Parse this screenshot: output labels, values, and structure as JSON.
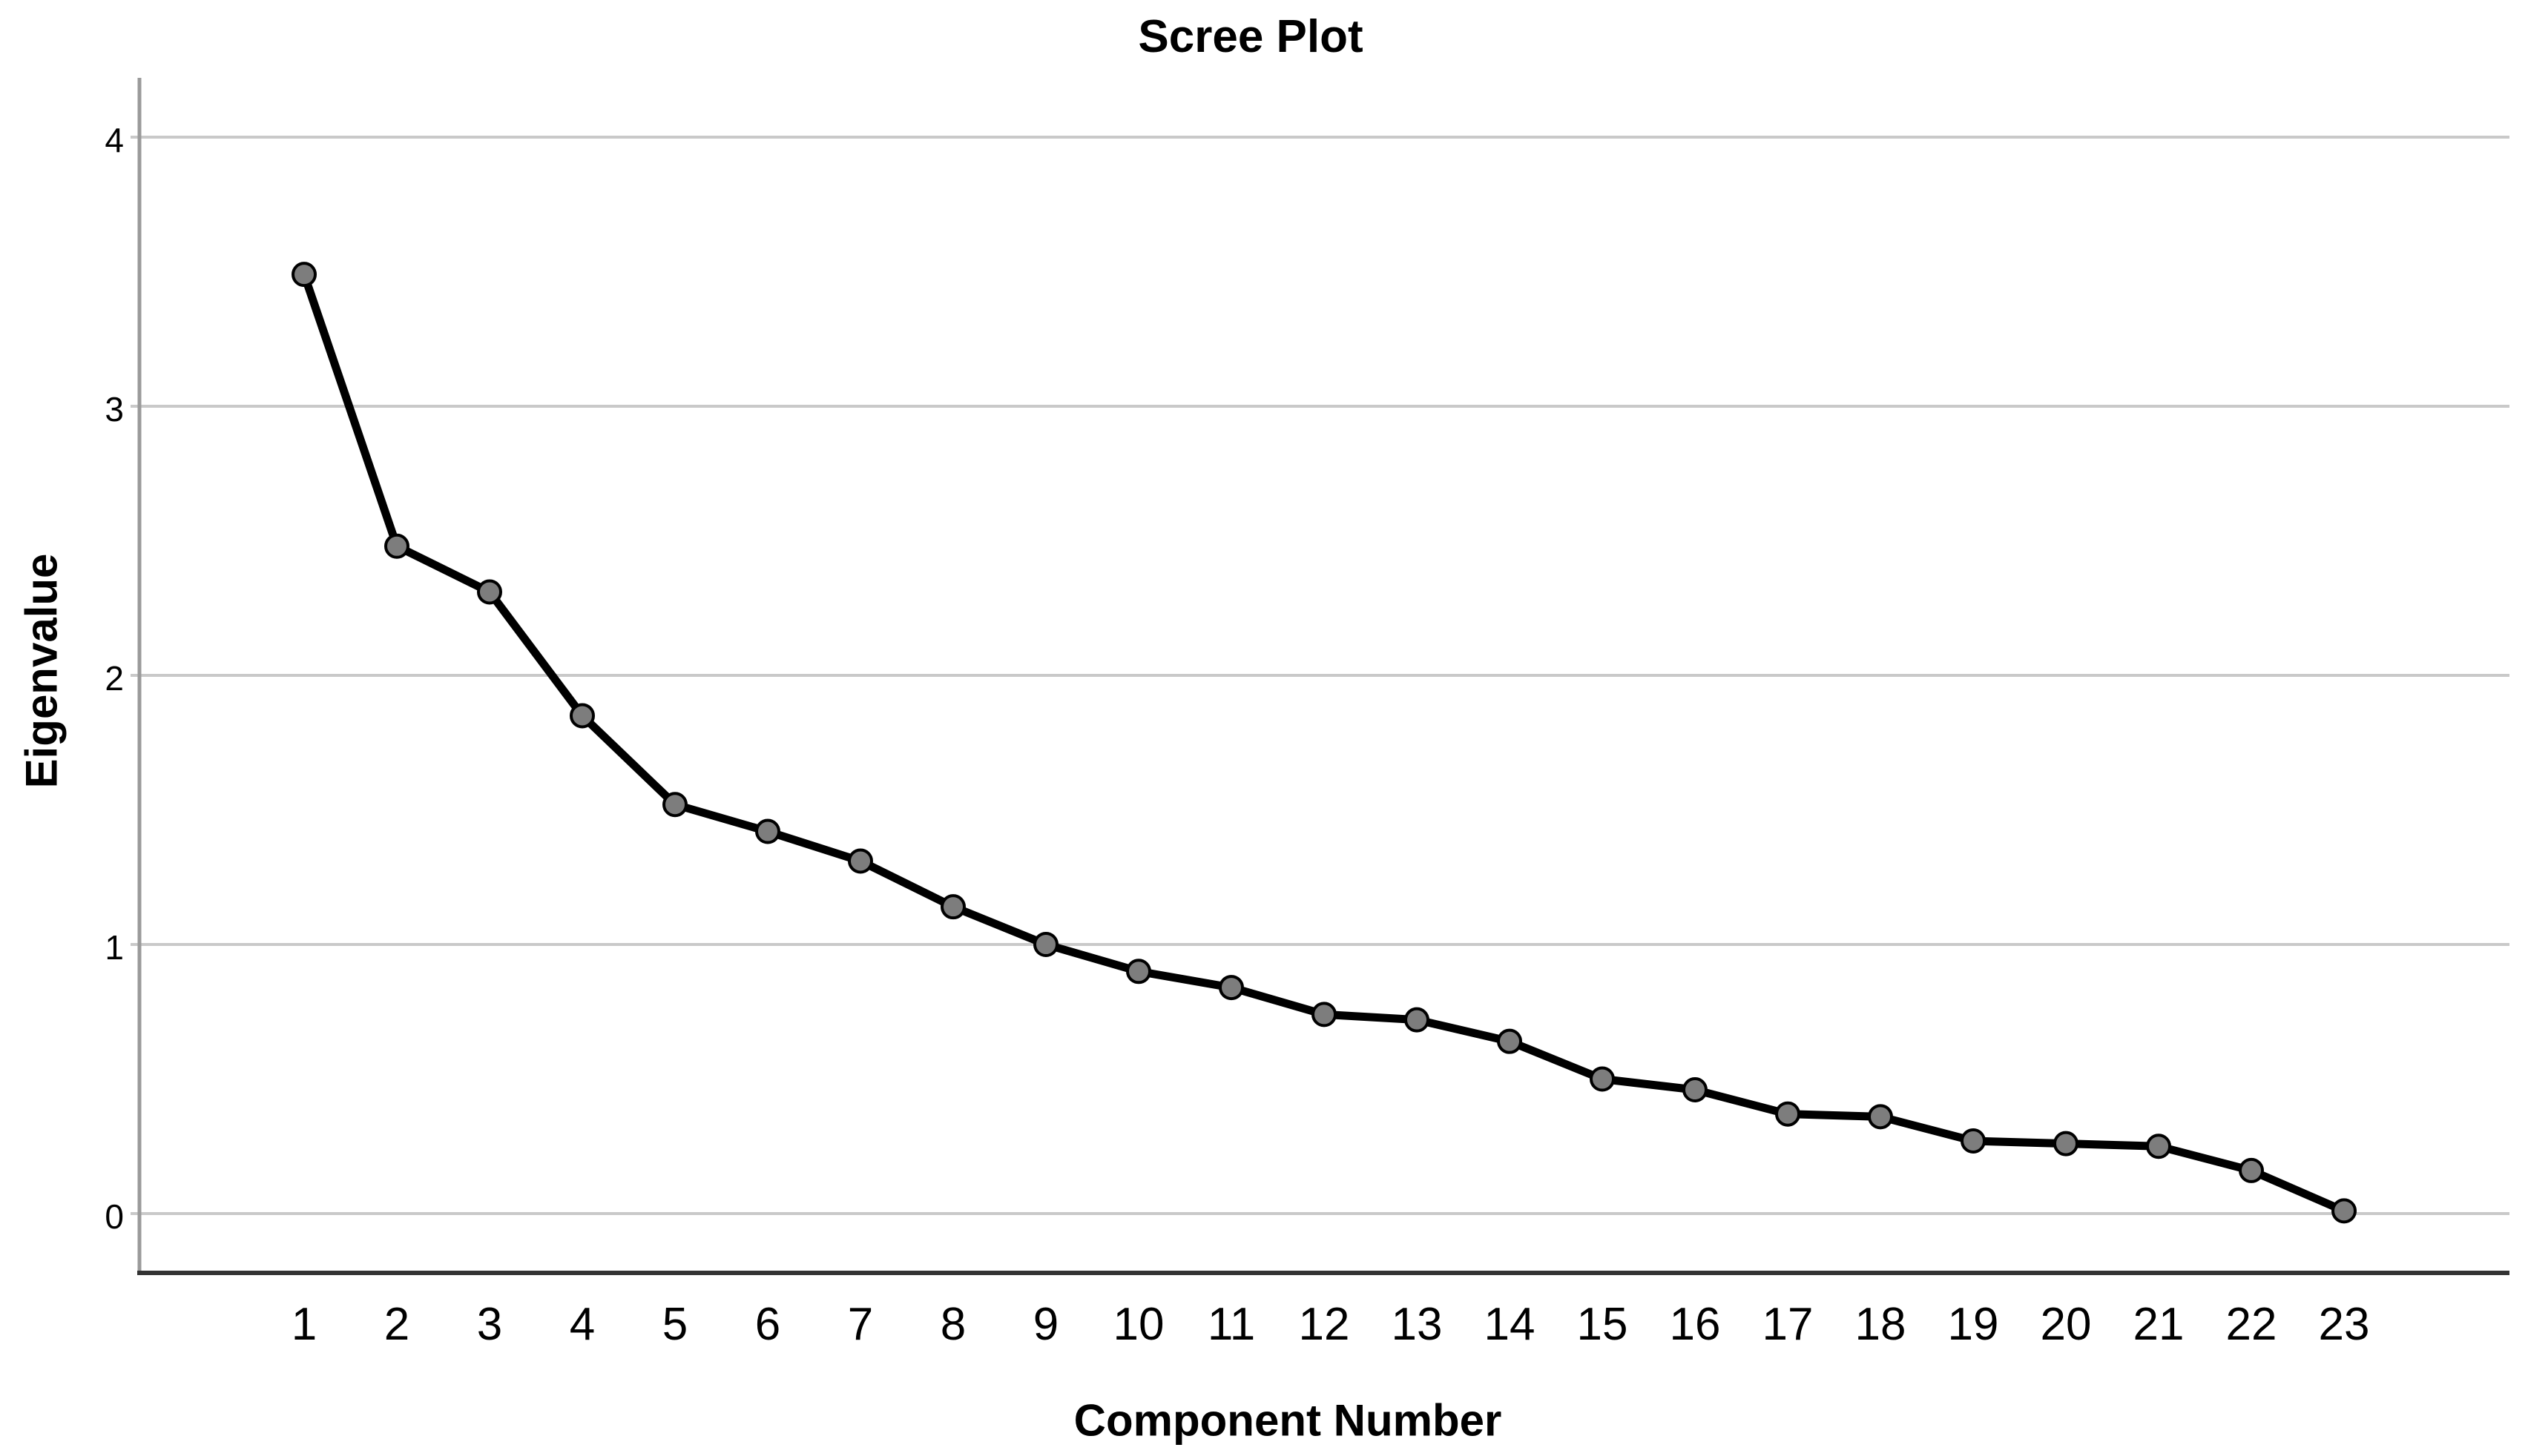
{
  "chart_data": {
    "type": "line",
    "title": "Scree Plot",
    "xlabel": "Component Number",
    "ylabel": "Eigenvalue",
    "x": [
      1,
      2,
      3,
      4,
      5,
      6,
      7,
      8,
      9,
      10,
      11,
      12,
      13,
      14,
      15,
      16,
      17,
      18,
      19,
      20,
      21,
      22,
      23
    ],
    "series": [
      {
        "name": "Eigenvalue",
        "values": [
          3.49,
          2.48,
          2.31,
          1.85,
          1.52,
          1.42,
          1.31,
          1.14,
          1.0,
          0.9,
          0.84,
          0.74,
          0.72,
          0.64,
          0.5,
          0.46,
          0.37,
          0.36,
          0.27,
          0.26,
          0.25,
          0.16,
          0.01
        ]
      }
    ],
    "ylim": [
      -0.22,
      4.22
    ],
    "xlim": [
      -0.8,
      24.8
    ],
    "yticks": [
      0,
      1,
      2,
      3,
      4
    ],
    "xticks": [
      1,
      2,
      3,
      4,
      5,
      6,
      7,
      8,
      9,
      10,
      11,
      12,
      13,
      14,
      15,
      16,
      17,
      18,
      19,
      20,
      21,
      22,
      23
    ],
    "grid": "horizontal",
    "legend": "none",
    "marker": "circle",
    "colors": {
      "background": "#ffffff",
      "line": "#000000",
      "marker_fill": "#7d7d7d",
      "marker_stroke": "#000000",
      "grid": "#c9c9c9",
      "y_axis": "#9a9a9a",
      "x_axis": "#333333",
      "text": "#000000"
    }
  }
}
